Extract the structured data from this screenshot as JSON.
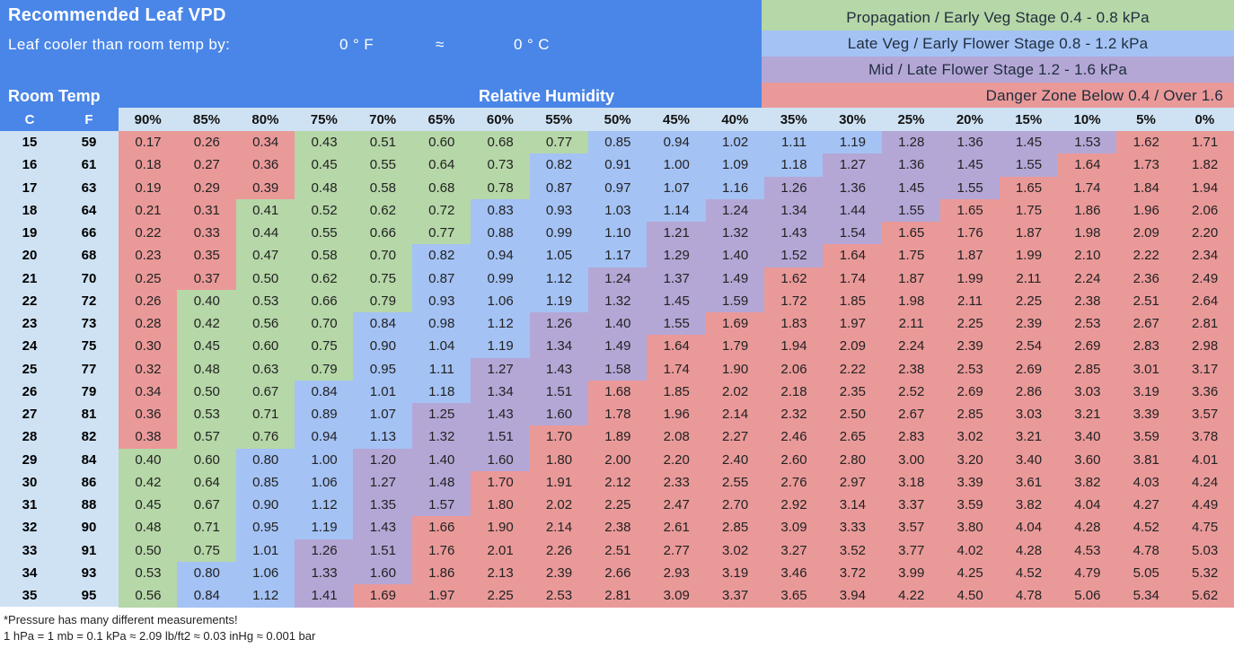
{
  "header": {
    "title": "Recommended Leaf VPD",
    "cooler_label": "Leaf cooler than room temp by:",
    "cooler_f": "0 ° F",
    "approx": "≈",
    "cooler_c": "0 ° C"
  },
  "legend": [
    {
      "label": "Propagation / Early Veg Stage  0.4 - 0.8 kPa",
      "color": "#b6d7a8"
    },
    {
      "label": "Late Veg / Early Flower Stage  0.8 - 1.2 kPa",
      "color": "#a4c2f4"
    },
    {
      "label": "Mid / Late Flower Stage  1.2 - 1.6 kPa",
      "color": "#b4a7d6"
    },
    {
      "label": "Danger Zone   Below 0.4 / Over 1.6",
      "color": "#ea9999"
    }
  ],
  "labels": {
    "room_temp": "Room Temp",
    "relative_humidity": "Relative Humidity",
    "col_c": "C",
    "col_f": "F"
  },
  "humidity": [
    "90%",
    "85%",
    "80%",
    "75%",
    "70%",
    "65%",
    "60%",
    "55%",
    "50%",
    "45%",
    "40%",
    "35%",
    "30%",
    "25%",
    "20%",
    "15%",
    "10%",
    "5%",
    "0%"
  ],
  "rows": [
    {
      "c": "15",
      "f": "59",
      "v": [
        "0.17",
        "0.26",
        "0.34",
        "0.43",
        "0.51",
        "0.60",
        "0.68",
        "0.77",
        "0.85",
        "0.94",
        "1.02",
        "1.11",
        "1.19",
        "1.28",
        "1.36",
        "1.45",
        "1.53",
        "1.62",
        "1.71"
      ]
    },
    {
      "c": "16",
      "f": "61",
      "v": [
        "0.18",
        "0.27",
        "0.36",
        "0.45",
        "0.55",
        "0.64",
        "0.73",
        "0.82",
        "0.91",
        "1.00",
        "1.09",
        "1.18",
        "1.27",
        "1.36",
        "1.45",
        "1.55",
        "1.64",
        "1.73",
        "1.82"
      ]
    },
    {
      "c": "17",
      "f": "63",
      "v": [
        "0.19",
        "0.29",
        "0.39",
        "0.48",
        "0.58",
        "0.68",
        "0.78",
        "0.87",
        "0.97",
        "1.07",
        "1.16",
        "1.26",
        "1.36",
        "1.45",
        "1.55",
        "1.65",
        "1.74",
        "1.84",
        "1.94"
      ]
    },
    {
      "c": "18",
      "f": "64",
      "v": [
        "0.21",
        "0.31",
        "0.41",
        "0.52",
        "0.62",
        "0.72",
        "0.83",
        "0.93",
        "1.03",
        "1.14",
        "1.24",
        "1.34",
        "1.44",
        "1.55",
        "1.65",
        "1.75",
        "1.86",
        "1.96",
        "2.06"
      ]
    },
    {
      "c": "19",
      "f": "66",
      "v": [
        "0.22",
        "0.33",
        "0.44",
        "0.55",
        "0.66",
        "0.77",
        "0.88",
        "0.99",
        "1.10",
        "1.21",
        "1.32",
        "1.43",
        "1.54",
        "1.65",
        "1.76",
        "1.87",
        "1.98",
        "2.09",
        "2.20"
      ]
    },
    {
      "c": "20",
      "f": "68",
      "v": [
        "0.23",
        "0.35",
        "0.47",
        "0.58",
        "0.70",
        "0.82",
        "0.94",
        "1.05",
        "1.17",
        "1.29",
        "1.40",
        "1.52",
        "1.64",
        "1.75",
        "1.87",
        "1.99",
        "2.10",
        "2.22",
        "2.34"
      ]
    },
    {
      "c": "21",
      "f": "70",
      "v": [
        "0.25",
        "0.37",
        "0.50",
        "0.62",
        "0.75",
        "0.87",
        "0.99",
        "1.12",
        "1.24",
        "1.37",
        "1.49",
        "1.62",
        "1.74",
        "1.87",
        "1.99",
        "2.11",
        "2.24",
        "2.36",
        "2.49"
      ]
    },
    {
      "c": "22",
      "f": "72",
      "v": [
        "0.26",
        "0.40",
        "0.53",
        "0.66",
        "0.79",
        "0.93",
        "1.06",
        "1.19",
        "1.32",
        "1.45",
        "1.59",
        "1.72",
        "1.85",
        "1.98",
        "2.11",
        "2.25",
        "2.38",
        "2.51",
        "2.64"
      ]
    },
    {
      "c": "23",
      "f": "73",
      "v": [
        "0.28",
        "0.42",
        "0.56",
        "0.70",
        "0.84",
        "0.98",
        "1.12",
        "1.26",
        "1.40",
        "1.55",
        "1.69",
        "1.83",
        "1.97",
        "2.11",
        "2.25",
        "2.39",
        "2.53",
        "2.67",
        "2.81"
      ]
    },
    {
      "c": "24",
      "f": "75",
      "v": [
        "0.30",
        "0.45",
        "0.60",
        "0.75",
        "0.90",
        "1.04",
        "1.19",
        "1.34",
        "1.49",
        "1.64",
        "1.79",
        "1.94",
        "2.09",
        "2.24",
        "2.39",
        "2.54",
        "2.69",
        "2.83",
        "2.98"
      ]
    },
    {
      "c": "25",
      "f": "77",
      "v": [
        "0.32",
        "0.48",
        "0.63",
        "0.79",
        "0.95",
        "1.11",
        "1.27",
        "1.43",
        "1.58",
        "1.74",
        "1.90",
        "2.06",
        "2.22",
        "2.38",
        "2.53",
        "2.69",
        "2.85",
        "3.01",
        "3.17"
      ]
    },
    {
      "c": "26",
      "f": "79",
      "v": [
        "0.34",
        "0.50",
        "0.67",
        "0.84",
        "1.01",
        "1.18",
        "1.34",
        "1.51",
        "1.68",
        "1.85",
        "2.02",
        "2.18",
        "2.35",
        "2.52",
        "2.69",
        "2.86",
        "3.03",
        "3.19",
        "3.36"
      ]
    },
    {
      "c": "27",
      "f": "81",
      "v": [
        "0.36",
        "0.53",
        "0.71",
        "0.89",
        "1.07",
        "1.25",
        "1.43",
        "1.60",
        "1.78",
        "1.96",
        "2.14",
        "2.32",
        "2.50",
        "2.67",
        "2.85",
        "3.03",
        "3.21",
        "3.39",
        "3.57"
      ]
    },
    {
      "c": "28",
      "f": "82",
      "v": [
        "0.38",
        "0.57",
        "0.76",
        "0.94",
        "1.13",
        "1.32",
        "1.51",
        "1.70",
        "1.89",
        "2.08",
        "2.27",
        "2.46",
        "2.65",
        "2.83",
        "3.02",
        "3.21",
        "3.40",
        "3.59",
        "3.78"
      ]
    },
    {
      "c": "29",
      "f": "84",
      "v": [
        "0.40",
        "0.60",
        "0.80",
        "1.00",
        "1.20",
        "1.40",
        "1.60",
        "1.80",
        "2.00",
        "2.20",
        "2.40",
        "2.60",
        "2.80",
        "3.00",
        "3.20",
        "3.40",
        "3.60",
        "3.81",
        "4.01"
      ]
    },
    {
      "c": "30",
      "f": "86",
      "v": [
        "0.42",
        "0.64",
        "0.85",
        "1.06",
        "1.27",
        "1.48",
        "1.70",
        "1.91",
        "2.12",
        "2.33",
        "2.55",
        "2.76",
        "2.97",
        "3.18",
        "3.39",
        "3.61",
        "3.82",
        "4.03",
        "4.24"
      ]
    },
    {
      "c": "31",
      "f": "88",
      "v": [
        "0.45",
        "0.67",
        "0.90",
        "1.12",
        "1.35",
        "1.57",
        "1.80",
        "2.02",
        "2.25",
        "2.47",
        "2.70",
        "2.92",
        "3.14",
        "3.37",
        "3.59",
        "3.82",
        "4.04",
        "4.27",
        "4.49"
      ]
    },
    {
      "c": "32",
      "f": "90",
      "v": [
        "0.48",
        "0.71",
        "0.95",
        "1.19",
        "1.43",
        "1.66",
        "1.90",
        "2.14",
        "2.38",
        "2.61",
        "2.85",
        "3.09",
        "3.33",
        "3.57",
        "3.80",
        "4.04",
        "4.28",
        "4.52",
        "4.75"
      ]
    },
    {
      "c": "33",
      "f": "91",
      "v": [
        "0.50",
        "0.75",
        "1.01",
        "1.26",
        "1.51",
        "1.76",
        "2.01",
        "2.26",
        "2.51",
        "2.77",
        "3.02",
        "3.27",
        "3.52",
        "3.77",
        "4.02",
        "4.28",
        "4.53",
        "4.78",
        "5.03"
      ]
    },
    {
      "c": "34",
      "f": "93",
      "v": [
        "0.53",
        "0.80",
        "1.06",
        "1.33",
        "1.60",
        "1.86",
        "2.13",
        "2.39",
        "2.66",
        "2.93",
        "3.19",
        "3.46",
        "3.72",
        "3.99",
        "4.25",
        "4.52",
        "4.79",
        "5.05",
        "5.32"
      ]
    },
    {
      "c": "35",
      "f": "95",
      "v": [
        "0.56",
        "0.84",
        "1.12",
        "1.41",
        "1.69",
        "1.97",
        "2.25",
        "2.53",
        "2.81",
        "3.09",
        "3.37",
        "3.65",
        "3.94",
        "4.22",
        "4.50",
        "4.78",
        "5.06",
        "5.34",
        "5.62"
      ]
    }
  ],
  "colors": {
    "header_blue": "#4a86e8",
    "temp_col_bg": "#cfe2f3",
    "green": "#b6d7a8",
    "blue": "#a4c2f4",
    "purple": "#b4a7d6",
    "red": "#ea9999"
  },
  "footer": {
    "line1": "*Pressure has many different measurements!",
    "line2": "1 hPa = 1 mb = 0.1 kPa ≈ 2.09 lb/ft2 ≈ 0.03 inHg ≈ 0.001 bar"
  }
}
